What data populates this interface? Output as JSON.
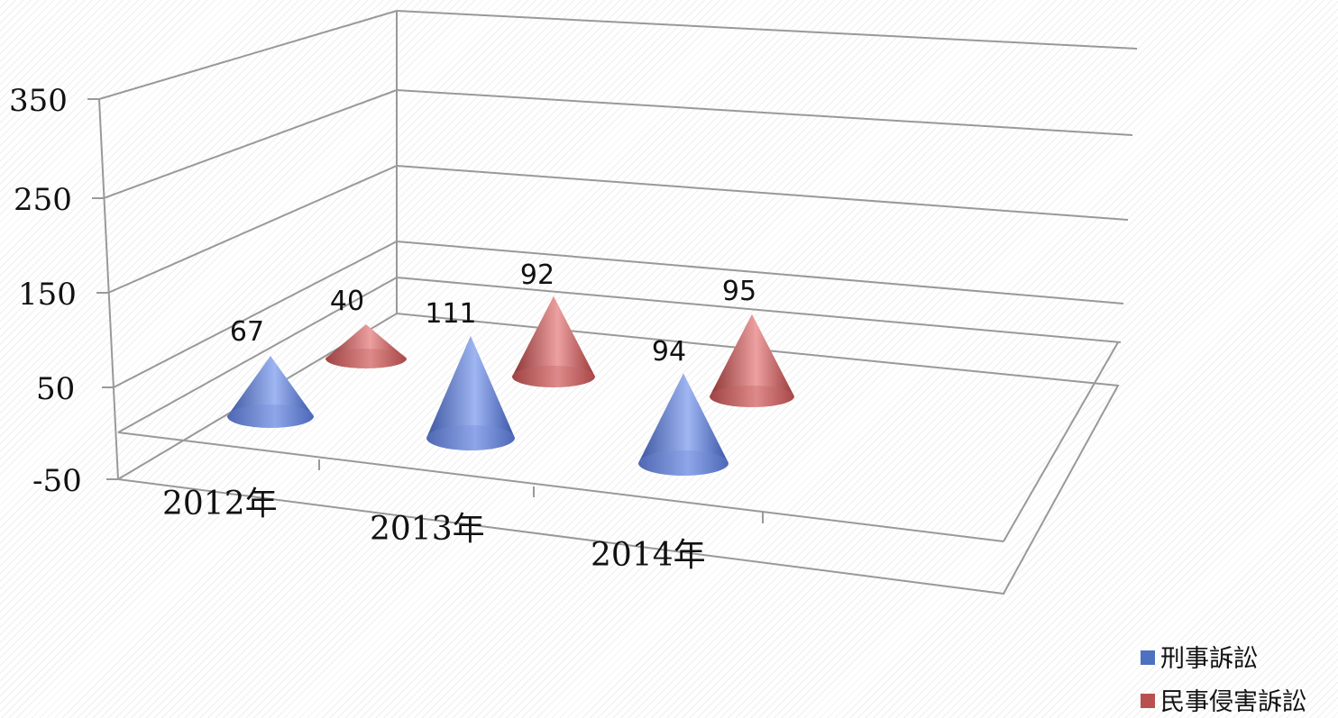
{
  "chart_data": {
    "type": "bar",
    "variant": "3d-cone",
    "title": "",
    "xlabel": "",
    "ylabel": "",
    "categories": [
      "2012年",
      "2013年",
      "2014年"
    ],
    "series": [
      {
        "name": "刑事訴訟",
        "values": [
          67,
          111,
          94
        ],
        "color": "#4f6fc0"
      },
      {
        "name": "民事侵害訴訟",
        "values": [
          40,
          92,
          95
        ],
        "color": "#b85050"
      }
    ],
    "y_ticks": [
      "-50",
      "50",
      "150",
      "250",
      "350"
    ],
    "ylim": [
      -50,
      350
    ],
    "grid": true,
    "legend": "bottom-right"
  }
}
